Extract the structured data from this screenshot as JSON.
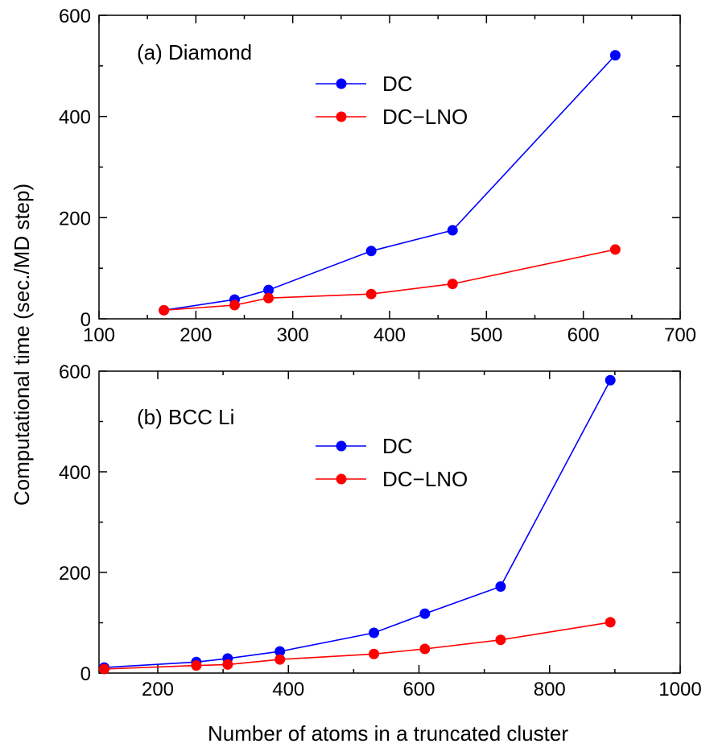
{
  "figure": {
    "ylabel": "Computational time (sec./MD step)",
    "xlabel": "Number of atoms in a truncated cluster"
  },
  "chart_data": [
    {
      "type": "line",
      "title": "(a) Diamond",
      "xlim": [
        100,
        700
      ],
      "ylim": [
        0,
        600
      ],
      "xticks": [
        100,
        200,
        300,
        400,
        500,
        600,
        700
      ],
      "yticks": [
        0,
        200,
        400,
        600
      ],
      "x_minor_step": 50,
      "y_minor_step": 100,
      "legend_position": "upper-center",
      "series": [
        {
          "name": "DC",
          "color": "#0000ff",
          "points": [
            [
              167,
              17
            ],
            [
              240,
              38
            ],
            [
              275,
              57
            ],
            [
              381,
              134
            ],
            [
              465,
              175
            ],
            [
              633,
              521
            ]
          ]
        },
        {
          "name": "DC−LNO",
          "color": "#ff0000",
          "points": [
            [
              167,
              17
            ],
            [
              240,
              27
            ],
            [
              275,
              41
            ],
            [
              381,
              49
            ],
            [
              465,
              69
            ],
            [
              633,
              137
            ]
          ]
        }
      ]
    },
    {
      "type": "line",
      "title": "(b) BCC Li",
      "xlim": [
        110,
        1000
      ],
      "ylim": [
        0,
        600
      ],
      "xticks": [
        200,
        400,
        600,
        800,
        1000
      ],
      "yticks": [
        0,
        200,
        400,
        600
      ],
      "x_minor_step": 100,
      "y_minor_step": 100,
      "legend_position": "upper-center",
      "series": [
        {
          "name": "DC",
          "color": "#0000ff",
          "points": [
            [
              118,
              11
            ],
            [
              259,
              22
            ],
            [
              307,
              29
            ],
            [
              387,
              43
            ],
            [
              531,
              80
            ],
            [
              609,
              118
            ],
            [
              725,
              172
            ],
            [
              893,
              582
            ]
          ]
        },
        {
          "name": "DC−LNO",
          "color": "#ff0000",
          "points": [
            [
              118,
              8
            ],
            [
              259,
              15
            ],
            [
              307,
              17
            ],
            [
              387,
              27
            ],
            [
              531,
              38
            ],
            [
              609,
              48
            ],
            [
              725,
              66
            ],
            [
              893,
              101
            ]
          ]
        }
      ]
    }
  ]
}
